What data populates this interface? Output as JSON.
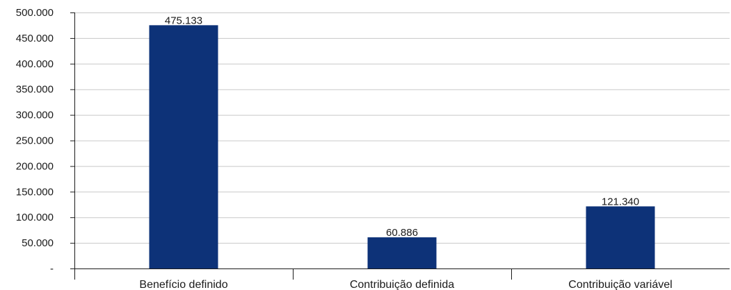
{
  "chart_data": {
    "type": "bar",
    "categories": [
      "Benefício definido",
      "Contribuição definida",
      "Contribuição variável"
    ],
    "values": [
      475133,
      60886,
      121340
    ],
    "data_labels": [
      "475.133",
      "60.886",
      "121.340"
    ],
    "ylim": [
      0,
      500000
    ],
    "yticks": [
      0,
      50000,
      100000,
      150000,
      200000,
      250000,
      300000,
      350000,
      400000,
      450000,
      500000
    ],
    "ytick_labels": [
      "-",
      "50.000",
      "100.000",
      "150.000",
      "200.000",
      "250.000",
      "300.000",
      "350.000",
      "400.000",
      "450.000",
      "500.000"
    ],
    "grid": true,
    "legend": "none",
    "bar_color": "#0d3278",
    "grid_color": "#c8c8c8",
    "axis_color": "#1a1a1a"
  }
}
